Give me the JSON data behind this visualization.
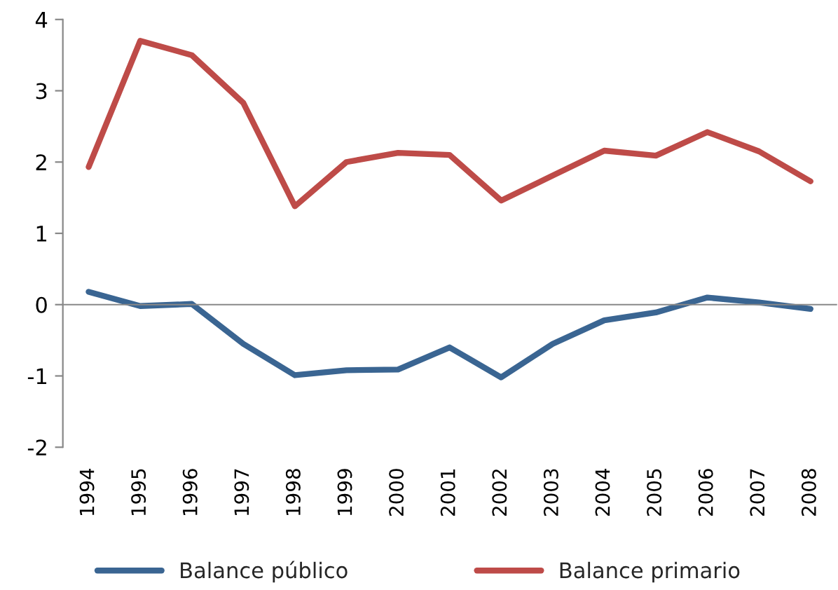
{
  "chart_data": {
    "type": "line",
    "categories": [
      "1994",
      "1995",
      "1996",
      "1997",
      "1998",
      "1999",
      "2000",
      "2001",
      "2002",
      "2003",
      "2004",
      "2005",
      "2006",
      "2007",
      "2008"
    ],
    "series": [
      {
        "name": "Balance público",
        "color": "#3a6592",
        "values": [
          0.18,
          -0.02,
          0.01,
          -0.55,
          -0.99,
          -0.92,
          -0.91,
          -0.6,
          -1.02,
          -0.55,
          -0.22,
          -0.11,
          0.1,
          0.03,
          -0.06
        ]
      },
      {
        "name": "Balance primario",
        "color": "#be4b48",
        "values": [
          1.93,
          3.7,
          3.5,
          2.83,
          1.38,
          2.0,
          2.13,
          2.1,
          1.46,
          1.81,
          2.16,
          2.09,
          2.42,
          2.15,
          1.73
        ]
      }
    ],
    "ylim": [
      -2,
      4
    ],
    "yticks": [
      -2,
      -1,
      0,
      1,
      2,
      3,
      4
    ],
    "legend": "bottom",
    "marker": "none",
    "line_style": "solid"
  }
}
